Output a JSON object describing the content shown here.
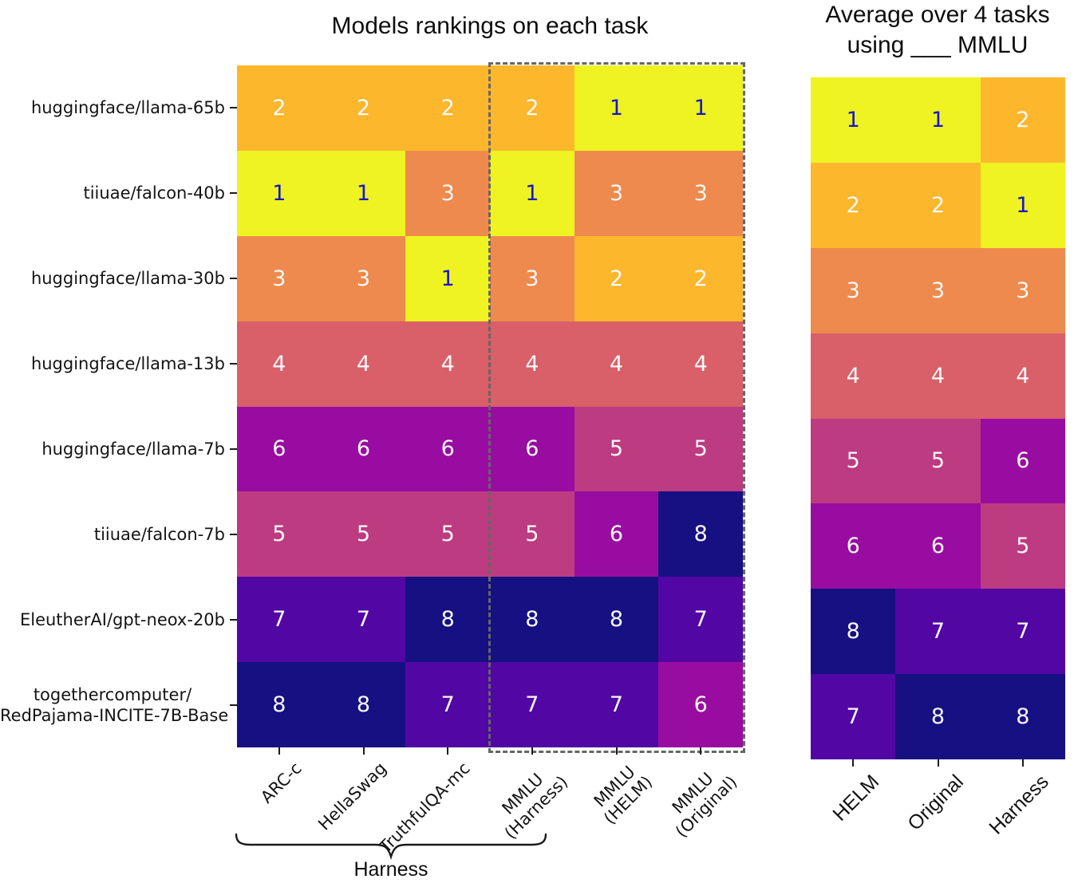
{
  "chart_data": [
    {
      "type": "heatmap",
      "title": "Models rankings on each task",
      "rows": [
        "huggingface/llama-65b",
        "tiiuae/falcon-40b",
        "huggingface/llama-30b",
        "huggingface/llama-13b",
        "huggingface/llama-7b",
        "tiiuae/falcon-7b",
        "EleutherAI/gpt-neox-20b",
        "togethercomputer/\nRedPajama-INCITE-7B-Base"
      ],
      "columns": [
        "ARC-c",
        "HellaSwag",
        "TruthfulQA-mc",
        "MMLU\n(Harness)",
        "MMLU\n(HELM)",
        "MMLU\n(Original)"
      ],
      "values": [
        [
          2,
          2,
          2,
          2,
          1,
          1
        ],
        [
          1,
          1,
          3,
          1,
          3,
          3
        ],
        [
          3,
          3,
          1,
          3,
          2,
          2
        ],
        [
          4,
          4,
          4,
          4,
          4,
          4
        ],
        [
          6,
          6,
          6,
          6,
          5,
          5
        ],
        [
          5,
          5,
          5,
          5,
          6,
          8
        ],
        [
          7,
          7,
          8,
          8,
          8,
          7
        ],
        [
          8,
          8,
          7,
          7,
          7,
          6
        ]
      ],
      "annotations": {
        "dashed_box": {
          "enclosed_columns": [
            "MMLU (Harness)",
            "MMLU (HELM)",
            "MMLU (Original)"
          ]
        },
        "brace": {
          "label": "Harness",
          "spans_columns": [
            "ARC-c",
            "HellaSwag",
            "TruthfulQA-mc",
            "MMLU (Harness)"
          ]
        }
      },
      "value_range": [
        1,
        8
      ]
    },
    {
      "type": "heatmap",
      "title": "Average over 4 tasks\nusing ___ MMLU",
      "rows": [
        "huggingface/llama-65b",
        "tiiuae/falcon-40b",
        "huggingface/llama-30b",
        "huggingface/llama-13b",
        "huggingface/llama-7b",
        "tiiuae/falcon-7b",
        "EleutherAI/gpt-neox-20b",
        "togethercomputer/RedPajama-INCITE-7B-Base"
      ],
      "columns": [
        "HELM",
        "Original",
        "Harness"
      ],
      "values": [
        [
          1,
          1,
          2
        ],
        [
          2,
          2,
          1
        ],
        [
          3,
          3,
          3
        ],
        [
          4,
          4,
          4
        ],
        [
          5,
          5,
          6
        ],
        [
          6,
          6,
          5
        ],
        [
          8,
          7,
          7
        ],
        [
          7,
          8,
          8
        ]
      ],
      "value_range": [
        1,
        8
      ]
    }
  ],
  "colors": {
    "rank_scale": {
      "1": "#eef321",
      "2": "#fcb72d",
      "3": "#ee8a4d",
      "4": "#d95f69",
      "5": "#bd3b81",
      "6": "#990ca1",
      "7": "#5207a4",
      "8": "#161082"
    },
    "value_text": "#f8f8f8",
    "value_text_rank1": "#1515d0",
    "dashed_box": "#666666",
    "axis_text": "#141414"
  }
}
